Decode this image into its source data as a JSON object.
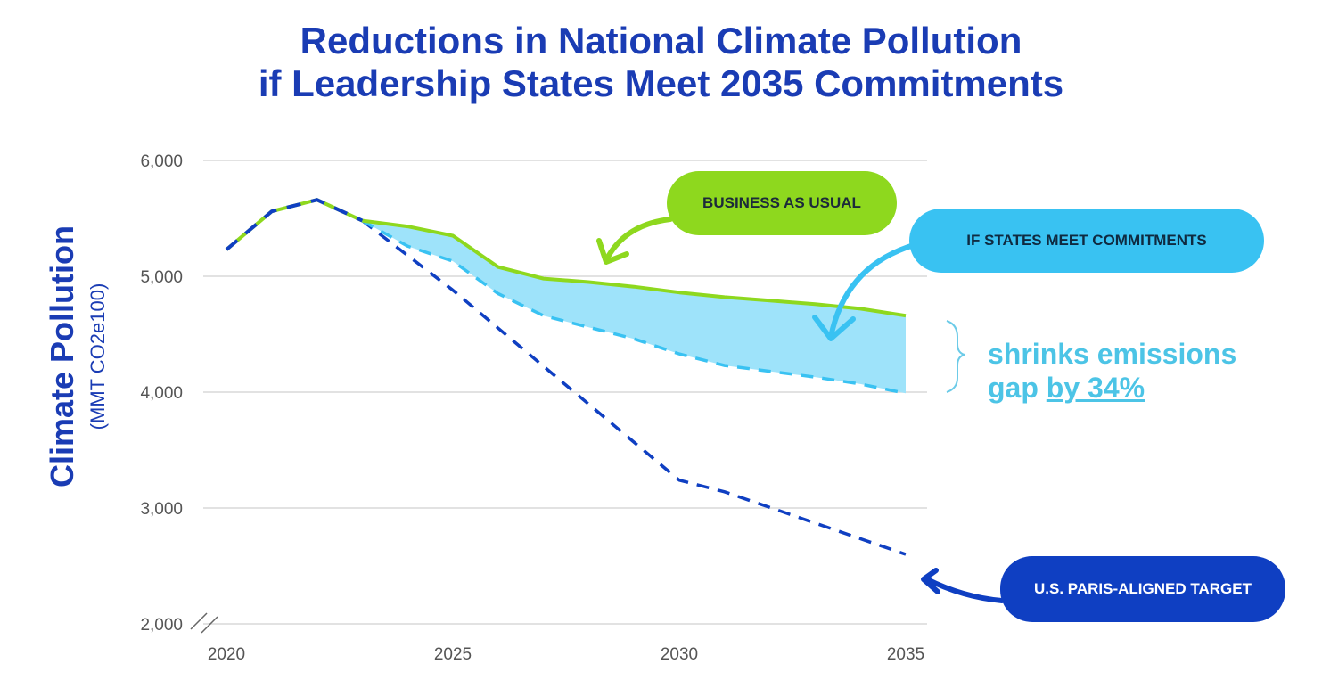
{
  "title_line1": "Reductions in National Climate Pollution",
  "title_line2": "if Leadership States Meet 2035 Commitments",
  "ylabel": "Climate Pollution",
  "yunit": "(MMT CO2e100)",
  "callouts": {
    "business_as_usual": "BUSINESS AS USUAL",
    "states_meet": "IF STATES MEET COMMITMENTS",
    "paris_target": "U.S. PARIS-ALIGNED TARGET"
  },
  "gap_text": {
    "line1": "shrinks emissions",
    "line2_prefix": "gap ",
    "line2_emph": "by 34%"
  },
  "colors": {
    "title": "#1a3cb4",
    "business_as_usual": "#8ed81e",
    "states": "#39c2f2",
    "fill": "#9ee3fa",
    "paris": "#0f3fc2",
    "grid": "#d8d8d8"
  },
  "chart_data": {
    "type": "line",
    "xlim": [
      2020,
      2035
    ],
    "ylim": [
      2000,
      6000
    ],
    "x_ticks": [
      "2020",
      "2025",
      "2030",
      "2035"
    ],
    "x_tick_values": [
      2020,
      2025,
      2030,
      2035
    ],
    "y_ticks": [
      "2,000",
      "3,000",
      "4,000",
      "5,000",
      "6,000"
    ],
    "y_tick_values": [
      2000,
      3000,
      4000,
      5000,
      6000
    ],
    "grid": true,
    "historical": {
      "x": [
        2020,
        2021,
        2022,
        2023
      ],
      "y": [
        5230,
        5560,
        5660,
        5480
      ]
    },
    "series": [
      {
        "name": "BUSINESS AS USUAL",
        "style": "solid",
        "x": [
          2023,
          2024,
          2025,
          2026,
          2027,
          2028,
          2029,
          2030,
          2031,
          2032,
          2033,
          2034,
          2035
        ],
        "y": [
          5480,
          5430,
          5350,
          5080,
          4980,
          4950,
          4910,
          4860,
          4820,
          4790,
          4760,
          4720,
          4660
        ]
      },
      {
        "name": "IF STATES MEET COMMITMENTS",
        "style": "dashed",
        "x": [
          2023,
          2024,
          2025,
          2026,
          2027,
          2028,
          2029,
          2030,
          2031,
          2032,
          2033,
          2034,
          2035
        ],
        "y": [
          5480,
          5260,
          5130,
          4850,
          4660,
          4560,
          4460,
          4330,
          4230,
          4180,
          4130,
          4070,
          3990
        ]
      },
      {
        "name": "U.S. PARIS-ALIGNED TARGET",
        "style": "dashed",
        "x": [
          2023,
          2025,
          2030,
          2031,
          2035
        ],
        "y": [
          5480,
          4880,
          3240,
          3140,
          2600
        ]
      }
    ]
  }
}
